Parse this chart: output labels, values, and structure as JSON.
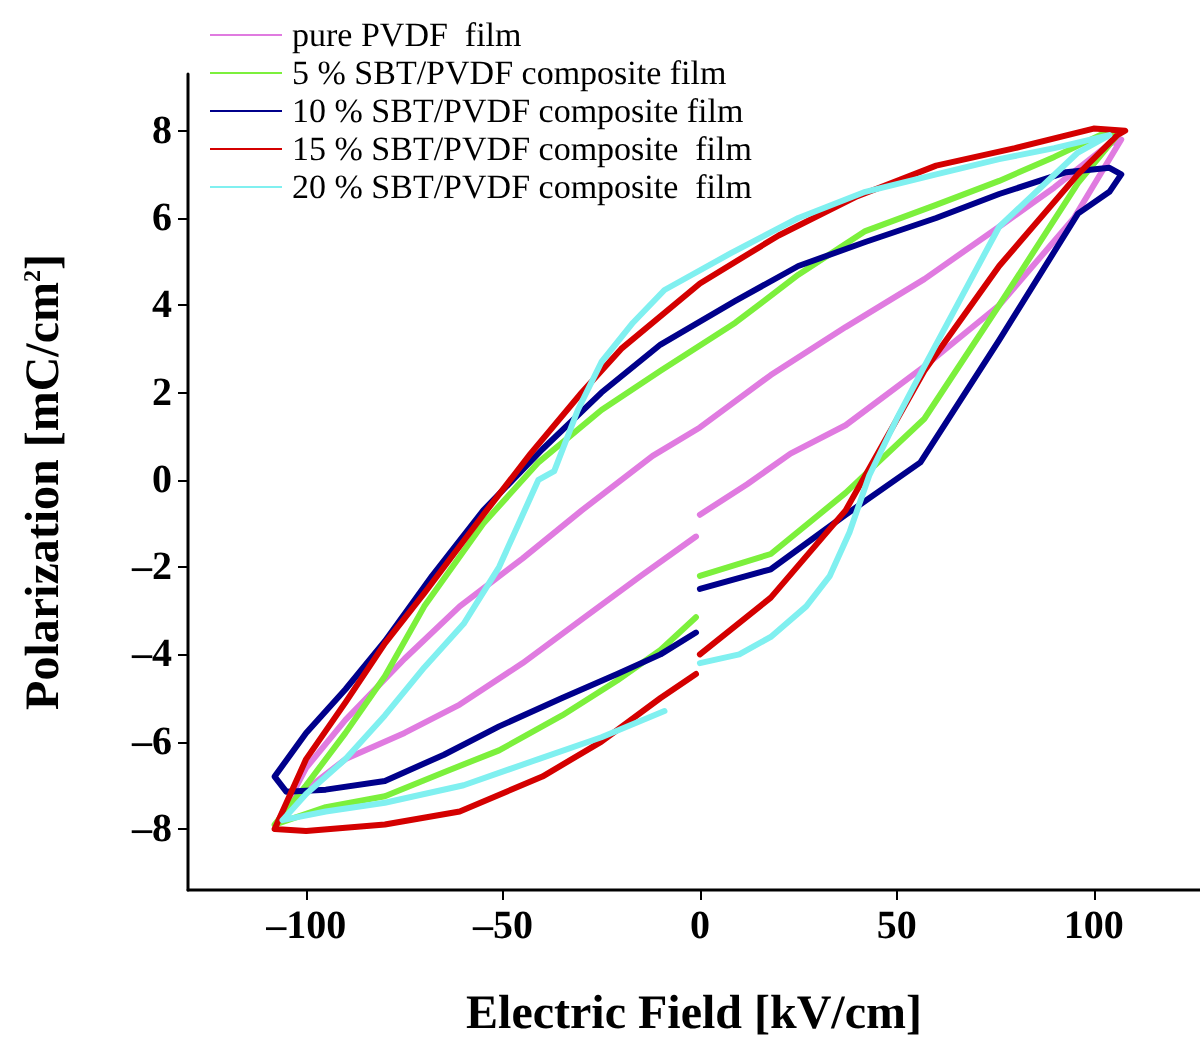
{
  "chart_data": {
    "type": "line",
    "xlabel": "Electric Field [kV/cm]",
    "ylabel": "Polarization [mC/cm$^{2}$]",
    "xlim": [
      -130,
      127
    ],
    "xticks": [
      {
        "value": -100,
        "label": "–100"
      },
      {
        "value": -50,
        "label": "–50"
      },
      0,
      50,
      100
    ],
    "ylim": [
      -9.4,
      9.3
    ],
    "yticks": [
      {
        "value": -8,
        "label": "–8"
      },
      {
        "value": -6,
        "label": "–6"
      },
      {
        "value": -4,
        "label": "–4"
      },
      {
        "value": -2,
        "label": "–2"
      },
      0,
      2,
      4,
      6,
      8
    ],
    "grid": false,
    "legend": "top left",
    "series": [
      {
        "name": "pure PVDF  film",
        "color": "#e07be0",
        "x": [
          0,
          12,
          23,
          37,
          57,
          76,
          95,
          107,
          104,
          90,
          76,
          57,
          37,
          18,
          0,
          -12,
          -30,
          -45,
          -61,
          -75,
          -90,
          -100,
          -107,
          -100,
          -90,
          -75,
          -61,
          -45,
          -30,
          -15,
          -1
        ],
        "values": [
          -0.8,
          -0.1,
          0.6,
          1.25,
          2.6,
          4.0,
          6.0,
          7.8,
          7.7,
          6.7,
          5.8,
          4.6,
          3.5,
          2.4,
          1.2,
          0.55,
          -0.7,
          -1.8,
          -2.9,
          -4.1,
          -5.5,
          -6.6,
          -7.8,
          -7.1,
          -6.4,
          -5.8,
          -5.15,
          -4.2,
          -3.2,
          -2.2,
          -1.3
        ]
      },
      {
        "name": "5 % SBT/PVDF composite film",
        "color": "#7cf03c",
        "x": [
          0,
          18,
          37,
          57,
          76,
          96,
          106,
          104,
          90,
          76,
          60,
          42,
          25,
          9,
          -10,
          -25,
          -41,
          -55,
          -70,
          -80,
          -90,
          -100,
          -108,
          -95,
          -80,
          -65,
          -51,
          -35,
          -21,
          -10,
          -1
        ],
        "values": [
          -2.2,
          -1.7,
          -0.3,
          1.4,
          4.0,
          6.8,
          7.9,
          8.0,
          7.4,
          6.85,
          6.3,
          5.7,
          4.7,
          3.6,
          2.5,
          1.6,
          0.4,
          -1.0,
          -2.9,
          -4.5,
          -5.8,
          -7.0,
          -7.9,
          -7.5,
          -7.25,
          -6.7,
          -6.2,
          -5.4,
          -4.6,
          -3.9,
          -3.15
        ]
      },
      {
        "name": "10 % SBT/PVDF composite film",
        "color": "#00008b",
        "x": [
          0,
          18,
          37,
          56,
          76,
          96,
          104,
          107,
          104,
          93,
          76,
          60,
          42,
          25,
          9,
          -10,
          -25,
          -40,
          -55,
          -68,
          -80,
          -90,
          -100,
          -108,
          -105,
          -95,
          -80,
          -65,
          -51,
          -35,
          -21,
          -10,
          -1
        ],
        "values": [
          -2.5,
          -2.05,
          -0.8,
          0.4,
          3.2,
          6.1,
          6.6,
          7.0,
          7.15,
          7.05,
          6.55,
          6.0,
          5.45,
          4.9,
          4.1,
          3.1,
          2.0,
          0.7,
          -0.7,
          -2.2,
          -3.7,
          -4.8,
          -5.8,
          -6.8,
          -7.15,
          -7.1,
          -6.9,
          -6.3,
          -5.65,
          -5.0,
          -4.45,
          -4.0,
          -3.5
        ]
      },
      {
        "name": "15 % SBT/PVDF composite  film",
        "color": "#d40000",
        "x": [
          0,
          18,
          37,
          57,
          76,
          96,
          106,
          108,
          100,
          80,
          60,
          40,
          20,
          0,
          -20,
          -30,
          -43,
          -55,
          -70,
          -80,
          -90,
          -100,
          -106,
          -108,
          -100,
          -80,
          -61,
          -40,
          -25,
          -10,
          -1
        ],
        "values": [
          -4.0,
          -2.7,
          -0.7,
          2.5,
          4.9,
          7.0,
          7.9,
          8.0,
          8.05,
          7.6,
          7.2,
          6.5,
          5.6,
          4.5,
          3.0,
          2.0,
          0.6,
          -0.8,
          -2.6,
          -3.75,
          -5.1,
          -6.4,
          -7.6,
          -8.0,
          -8.05,
          -7.9,
          -7.6,
          -6.8,
          -6.0,
          -5.0,
          -4.45
        ]
      },
      {
        "name": "20 % SBT/PVDF composite  film",
        "color": "#80f0f0",
        "x": [
          0,
          10,
          18,
          27,
          33,
          38,
          43,
          50,
          57,
          76,
          96,
          104,
          90,
          76,
          60,
          42,
          25,
          8,
          -9,
          -17,
          -25,
          -31,
          -37,
          -41,
          -46,
          -51,
          -60,
          -70,
          -80,
          -90,
          -100,
          -106,
          -95,
          -80,
          -60,
          -41,
          -25,
          -9
        ],
        "values": [
          -4.2,
          -4.0,
          -3.6,
          -2.9,
          -2.2,
          -1.2,
          0.1,
          1.4,
          2.6,
          5.8,
          7.5,
          7.9,
          7.6,
          7.35,
          7.0,
          6.6,
          6.0,
          5.2,
          4.35,
          3.6,
          2.7,
          1.6,
          0.2,
          0.0,
          -1.0,
          -2.0,
          -3.3,
          -4.3,
          -5.4,
          -6.4,
          -7.2,
          -7.8,
          -7.6,
          -7.4,
          -7.0,
          -6.4,
          -5.9,
          -5.3
        ]
      }
    ]
  }
}
